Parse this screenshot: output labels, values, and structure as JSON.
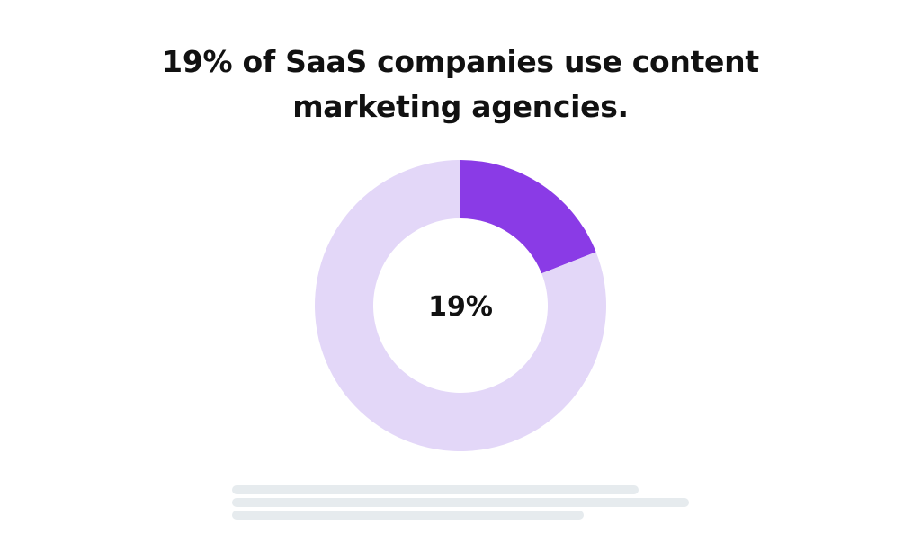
{
  "title": {
    "line1": "19% of SaaS companies use content",
    "line2": "marketing agencies."
  },
  "chart_data": {
    "type": "pie",
    "variant": "donut",
    "center_label": "19%",
    "slices": [
      {
        "value": 19,
        "color": "#8a3be6"
      },
      {
        "value": 81,
        "color": "#e3d7f8"
      }
    ]
  },
  "placeholder_lines": [
    {
      "width_fraction": 0.89
    },
    {
      "width_fraction": 1.0
    },
    {
      "width_fraction": 0.77
    }
  ]
}
